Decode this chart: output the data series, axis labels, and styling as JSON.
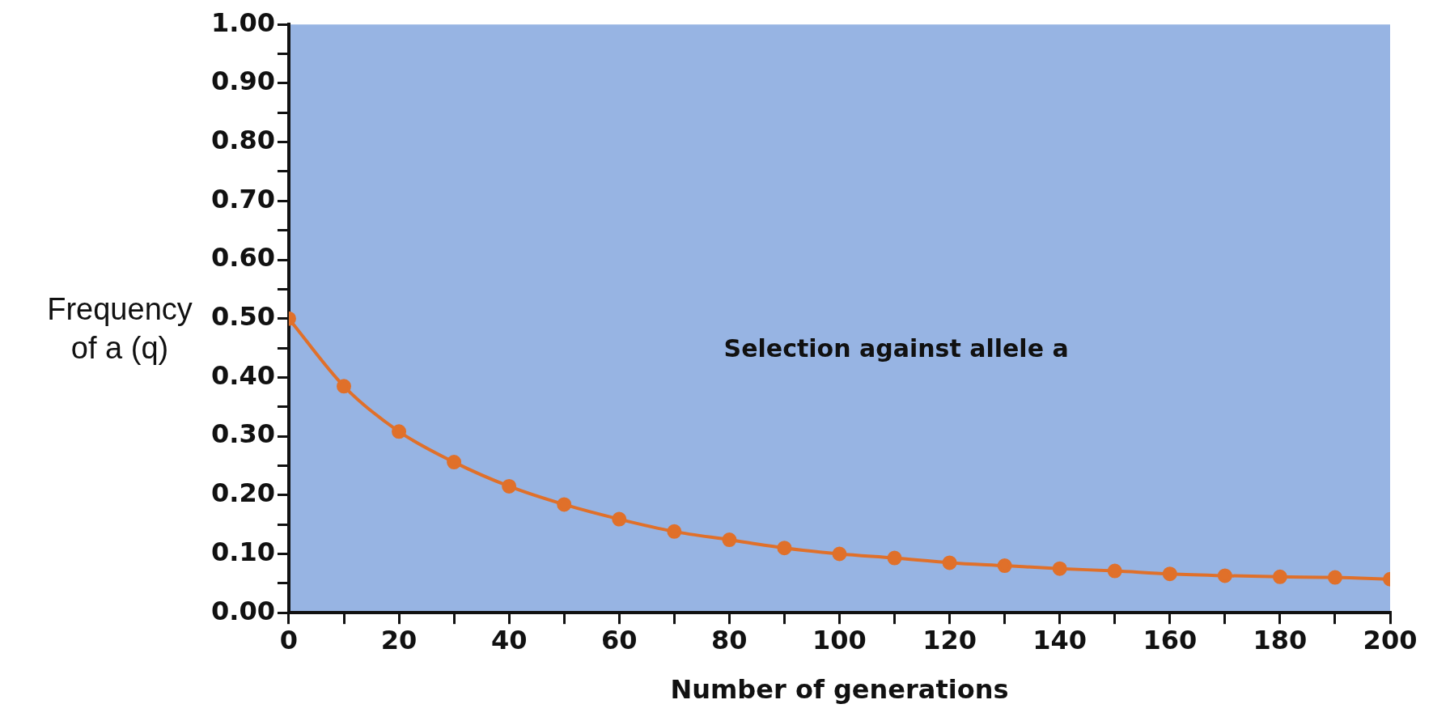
{
  "chart_data": {
    "type": "line",
    "xlabel": "Number of generations",
    "ylabel": "Frequency of a (q)",
    "annotations": [
      "Selection against allele a"
    ],
    "x": [
      0,
      10,
      20,
      30,
      40,
      50,
      60,
      70,
      80,
      90,
      100,
      110,
      120,
      130,
      140,
      150,
      160,
      170,
      180,
      190,
      200
    ],
    "series": [
      {
        "color": "#e0702a",
        "values": [
          0.5,
          0.385,
          0.308,
          0.256,
          0.215,
          0.184,
          0.159,
          0.138,
          0.124,
          0.11,
          0.1,
          0.093,
          0.085,
          0.08,
          0.075,
          0.071,
          0.066,
          0.063,
          0.061,
          0.06,
          0.057
        ]
      }
    ],
    "xlim": [
      0,
      200
    ],
    "xticks": [
      0,
      {
        "value": 10,
        "label": null
      },
      20,
      {
        "value": 30,
        "label": null
      },
      40,
      {
        "value": 50,
        "label": null
      },
      60,
      {
        "value": 70,
        "label": null
      },
      80,
      {
        "value": 90,
        "label": null
      },
      100,
      {
        "value": 110,
        "label": null
      },
      120,
      {
        "value": 130,
        "label": null
      },
      140,
      {
        "value": 150,
        "label": null
      },
      160,
      {
        "value": 170,
        "label": null
      },
      180,
      {
        "value": 190,
        "label": null
      },
      200
    ],
    "ylim": [
      0,
      1
    ],
    "yticks": [
      {
        "value": 0,
        "label": "0.00"
      },
      {
        "value": 0.05,
        "label": null
      },
      {
        "value": 0.1,
        "label": "0.10"
      },
      {
        "value": 0.15,
        "label": null
      },
      {
        "value": 0.2,
        "label": "0.20"
      },
      {
        "value": 0.25,
        "label": null
      },
      {
        "value": 0.3,
        "label": "0.30"
      },
      {
        "value": 0.35,
        "label": null
      },
      {
        "value": 0.4,
        "label": "0.40"
      },
      {
        "value": 0.45,
        "label": null
      },
      {
        "value": 0.5,
        "label": "0.50"
      },
      {
        "value": 0.55,
        "label": null
      },
      {
        "value": 0.6,
        "label": "0.60"
      },
      {
        "value": 0.65,
        "label": null
      },
      {
        "value": 0.7,
        "label": "0.70"
      },
      {
        "value": 0.75,
        "label": null
      },
      {
        "value": 0.8,
        "label": "0.80"
      },
      {
        "value": 0.85,
        "label": null
      },
      {
        "value": 0.9,
        "label": "0.90"
      },
      {
        "value": 0.95,
        "label": null
      },
      {
        "value": 1,
        "label": "1.00"
      }
    ],
    "grid": false,
    "legend": false,
    "marker": "circle",
    "line_style": "solid"
  }
}
